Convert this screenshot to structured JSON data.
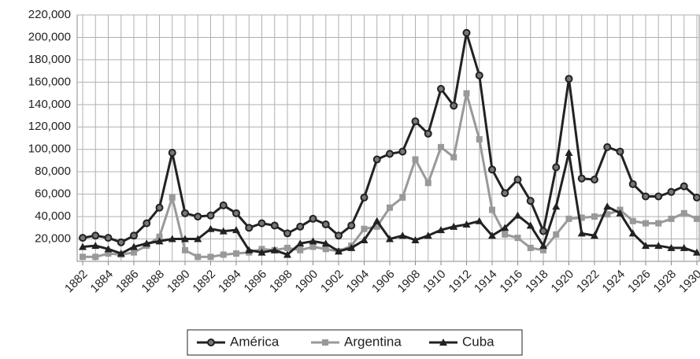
{
  "chart_data": {
    "type": "line",
    "x": [
      1882,
      1883,
      1884,
      1885,
      1886,
      1887,
      1888,
      1889,
      1890,
      1891,
      1892,
      1893,
      1894,
      1895,
      1896,
      1897,
      1898,
      1899,
      1900,
      1901,
      1902,
      1903,
      1904,
      1905,
      1906,
      1907,
      1908,
      1909,
      1910,
      1911,
      1912,
      1913,
      1914,
      1915,
      1916,
      1917,
      1918,
      1919,
      1920,
      1921,
      1922,
      1923,
      1924,
      1925,
      1926,
      1927,
      1928,
      1929,
      1930
    ],
    "xlim": [
      1882,
      1930
    ],
    "xticks": [
      1882,
      1884,
      1886,
      1888,
      1890,
      1892,
      1894,
      1896,
      1898,
      1900,
      1902,
      1904,
      1906,
      1908,
      1910,
      1912,
      1914,
      1916,
      1918,
      1920,
      1922,
      1924,
      1926,
      1928,
      1930
    ],
    "ylim": [
      0,
      220000
    ],
    "yticks": [
      {
        "value": 20000,
        "label": "20,000"
      },
      {
        "value": 40000,
        "label": "40,000"
      },
      {
        "value": 60000,
        "label": "60,000"
      },
      {
        "value": 80000,
        "label": "80,000"
      },
      {
        "value": 100000,
        "label": "100,000"
      },
      {
        "value": 120000,
        "label": "120,000"
      },
      {
        "value": 140000,
        "label": "140,000"
      },
      {
        "value": 160000,
        "label": "160,000"
      },
      {
        "value": 180000,
        "label": "180,000"
      },
      {
        "value": 200000,
        "label": "200,000"
      },
      {
        "value": 220000,
        "label": "220,000"
      }
    ],
    "grid": true,
    "legend": "bottom",
    "series": [
      {
        "name": "América",
        "color": "#222222",
        "marker": "circle",
        "values": [
          21000,
          23000,
          21000,
          17000,
          23000,
          34000,
          48000,
          97000,
          43000,
          40000,
          41000,
          50000,
          43000,
          30000,
          34000,
          32000,
          25000,
          31000,
          38000,
          33000,
          23000,
          32000,
          57000,
          91000,
          96000,
          98000,
          125000,
          114000,
          154000,
          139000,
          204000,
          166000,
          82000,
          61000,
          73000,
          54000,
          27000,
          84000,
          163000,
          74000,
          73000,
          102000,
          98000,
          69000,
          58000,
          58000,
          62000,
          67000,
          57000
        ]
      },
      {
        "name": "Argentina",
        "color": "#999999",
        "marker": "square",
        "values": [
          4000,
          4000,
          7000,
          6000,
          8000,
          14000,
          22000,
          57000,
          10000,
          4000,
          4000,
          6000,
          7000,
          8000,
          11000,
          10000,
          12000,
          10000,
          13000,
          11000,
          9000,
          14000,
          29000,
          31000,
          48000,
          57000,
          91000,
          70000,
          102000,
          93000,
          150000,
          109000,
          46000,
          24000,
          21000,
          12000,
          10000,
          24000,
          38000,
          39000,
          40000,
          42000,
          46000,
          36000,
          34000,
          34000,
          38000,
          43000,
          38000
        ]
      },
      {
        "name": "Cuba",
        "color": "#222222",
        "marker": "triangle",
        "values": [
          13000,
          14000,
          11000,
          7000,
          13000,
          16000,
          18000,
          20000,
          20000,
          20000,
          29000,
          27000,
          28000,
          10000,
          8000,
          10000,
          6000,
          16000,
          18000,
          16000,
          9000,
          12000,
          19000,
          36000,
          20000,
          23000,
          19000,
          23000,
          28000,
          31000,
          33000,
          36000,
          23000,
          30000,
          41000,
          32000,
          14000,
          49000,
          97000,
          25000,
          23000,
          49000,
          43000,
          25000,
          14000,
          14000,
          12000,
          12000,
          8000
        ]
      }
    ]
  }
}
